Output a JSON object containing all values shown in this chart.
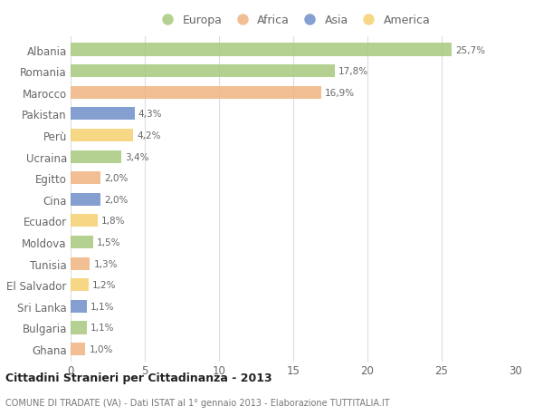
{
  "countries": [
    "Albania",
    "Romania",
    "Marocco",
    "Pakistan",
    "Perù",
    "Ucraina",
    "Egitto",
    "Cina",
    "Ecuador",
    "Moldova",
    "Tunisia",
    "El Salvador",
    "Sri Lanka",
    "Bulgaria",
    "Ghana"
  ],
  "values": [
    25.7,
    17.8,
    16.9,
    4.3,
    4.2,
    3.4,
    2.0,
    2.0,
    1.8,
    1.5,
    1.3,
    1.2,
    1.1,
    1.1,
    1.0
  ],
  "labels": [
    "25,7%",
    "17,8%",
    "16,9%",
    "4,3%",
    "4,2%",
    "3,4%",
    "2,0%",
    "2,0%",
    "1,8%",
    "1,5%",
    "1,3%",
    "1,2%",
    "1,1%",
    "1,1%",
    "1,0%"
  ],
  "continents": [
    "Europa",
    "Europa",
    "Africa",
    "Asia",
    "America",
    "Europa",
    "Africa",
    "Asia",
    "America",
    "Europa",
    "Africa",
    "America",
    "Asia",
    "Europa",
    "Africa"
  ],
  "colors": {
    "Europa": "#a8c97f",
    "Africa": "#f0b482",
    "Asia": "#7090c8",
    "America": "#f5d070"
  },
  "legend_order": [
    "Europa",
    "Africa",
    "Asia",
    "America"
  ],
  "title": "Cittadini Stranieri per Cittadinanza - 2013",
  "subtitle": "COMUNE DI TRADATE (VA) - Dati ISTAT al 1° gennaio 2013 - Elaborazione TUTTITALIA.IT",
  "xlim": [
    0,
    30
  ],
  "xticks": [
    0,
    5,
    10,
    15,
    20,
    25,
    30
  ],
  "bg_color": "#ffffff",
  "grid_color": "#dddddd",
  "bar_height": 0.6,
  "text_color": "#666666",
  "title_color": "#222222",
  "subtitle_color": "#777777"
}
